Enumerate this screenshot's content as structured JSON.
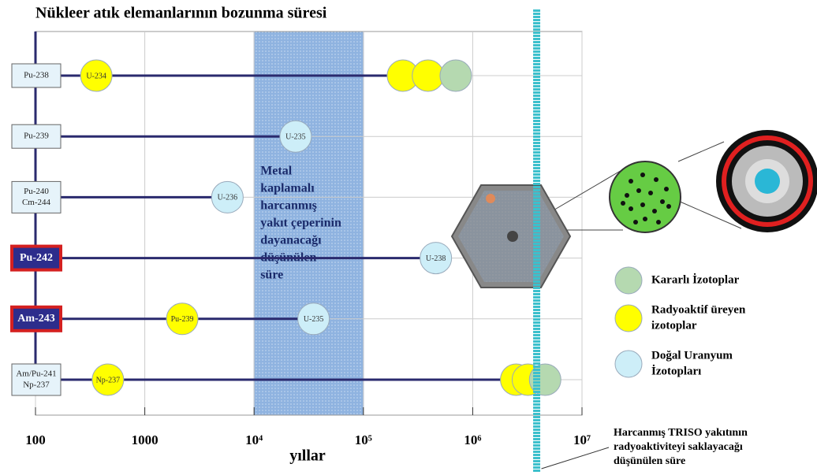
{
  "chart_data": {
    "type": "decay-timeline",
    "title": "Nükleer atık elemanlarının bozunma süresi",
    "xlabel": "yıllar",
    "xlog": true,
    "grid": true,
    "xlim": [
      100,
      10000000
    ],
    "xticks": [
      100,
      1000,
      {
        "value": 10000,
        "label": "10⁴"
      },
      {
        "value": 100000,
        "label": "10⁵"
      },
      {
        "value": 1000000,
        "label": "10⁶"
      },
      {
        "value": 10000000,
        "label": "10⁷"
      }
    ],
    "line_color": "#2a2a6e",
    "rows": [
      {
        "label": [
          "Pu-238"
        ],
        "highlight": false,
        "end": 700000,
        "circles": [
          {
            "x": 360,
            "label": "U-234",
            "color": "#ffff00"
          },
          {
            "x": 230000,
            "color": "#ffff00"
          },
          {
            "x": 390000,
            "color": "#ffff00"
          },
          {
            "x": 700000,
            "color": "#b5d9b0"
          }
        ]
      },
      {
        "label": [
          "Pu-239"
        ],
        "highlight": false,
        "end": 24000,
        "circles": [
          {
            "x": 24000,
            "label": "U-235",
            "color": "#cdeef8"
          }
        ]
      },
      {
        "label": [
          "Pu-240",
          "Cm-244"
        ],
        "highlight": false,
        "end": 5700,
        "circles": [
          {
            "x": 5700,
            "label": "U-236",
            "color": "#cdeef8"
          }
        ]
      },
      {
        "label": [
          "Pu-242"
        ],
        "highlight": true,
        "end": 460000,
        "circles": [
          {
            "x": 460000,
            "label": "U-238",
            "color": "#cdeef8"
          }
        ]
      },
      {
        "label": [
          "Am-243"
        ],
        "highlight": true,
        "end": 35000,
        "circles": [
          {
            "x": 2200,
            "label": "Pu-239",
            "color": "#ffff00"
          },
          {
            "x": 35000,
            "label": "U-235",
            "color": "#cdeef8"
          }
        ]
      },
      {
        "label": [
          "Am/Pu-241",
          "Np-237"
        ],
        "highlight": false,
        "end": 4600000,
        "circles": [
          {
            "x": 460,
            "label": "Np-237",
            "color": "#ffff00"
          },
          {
            "x": 2500000,
            "color": "#ffff00"
          },
          {
            "x": 3200000,
            "color": "#ffff00"
          },
          {
            "x": 4600000,
            "color": "#b5d9b0"
          }
        ]
      }
    ],
    "band": {
      "range": [
        10000,
        100000
      ],
      "color": "#7fa6d8",
      "text": [
        "Metal",
        "kaplamalı",
        "harcanmış",
        "yakıt çeperinin",
        "dayanacağı",
        "düşünülen",
        "süre"
      ]
    },
    "marker": {
      "x": 3850000,
      "color": "#3cc0cc",
      "text": [
        "Harcanmış TRISO yakıtının",
        "radyoaktiviteyi saklayacağı",
        "düşünülen süre"
      ]
    },
    "legend": [
      {
        "text": [
          "Kararlı İzotoplar"
        ],
        "color": "#b5d9b0"
      },
      {
        "text": [
          "Radyoaktif üreyen",
          "izotoplar"
        ],
        "color": "#ffff00"
      },
      {
        "text": [
          "Doğal Uranyum",
          "İzotopları"
        ],
        "color": "#cdeef8"
      }
    ]
  }
}
